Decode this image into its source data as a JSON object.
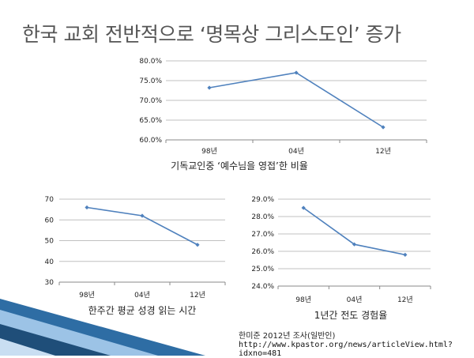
{
  "slide": {
    "title": "한국 교회 전반적으로 ‘명목상 그리스도인’ 증가",
    "source_line": "한미준 2012년 조사(일반인)",
    "url_line": "http://www.kpastor.org/news/articleView.html?idxno=481"
  },
  "colors": {
    "line": "#4f81bd",
    "grid": "#c0c0c0",
    "accent_stripe_dark": "#1f4e79",
    "accent_stripe_light": "#8fb4d9"
  },
  "chart_data": [
    {
      "type": "line",
      "caption": "기독교인중 ‘예수님을 영접’한 비율",
      "categories": [
        "98년",
        "04년",
        "12년"
      ],
      "values": [
        73.2,
        77.0,
        63.2
      ],
      "ylim": [
        60,
        80
      ],
      "yticks": [
        "60.0%",
        "65.0%",
        "70.0%",
        "75.0%",
        "80.0%"
      ],
      "grid": true
    },
    {
      "type": "line",
      "caption": "한주간 평균 성경 읽는 시간",
      "categories": [
        "98년",
        "04년",
        "12년"
      ],
      "values": [
        66,
        62,
        48
      ],
      "ylim": [
        30,
        70
      ],
      "yticks": [
        "30",
        "40",
        "50",
        "60",
        "70"
      ],
      "grid": true
    },
    {
      "type": "line",
      "caption": "1년간 전도 경험율",
      "categories": [
        "98년",
        "04년",
        "12년"
      ],
      "values": [
        28.5,
        26.4,
        25.8
      ],
      "ylim": [
        24,
        29
      ],
      "yticks": [
        "24.0%",
        "25.0%",
        "26.0%",
        "27.0%",
        "28.0%",
        "29.0%"
      ],
      "grid": true
    }
  ]
}
